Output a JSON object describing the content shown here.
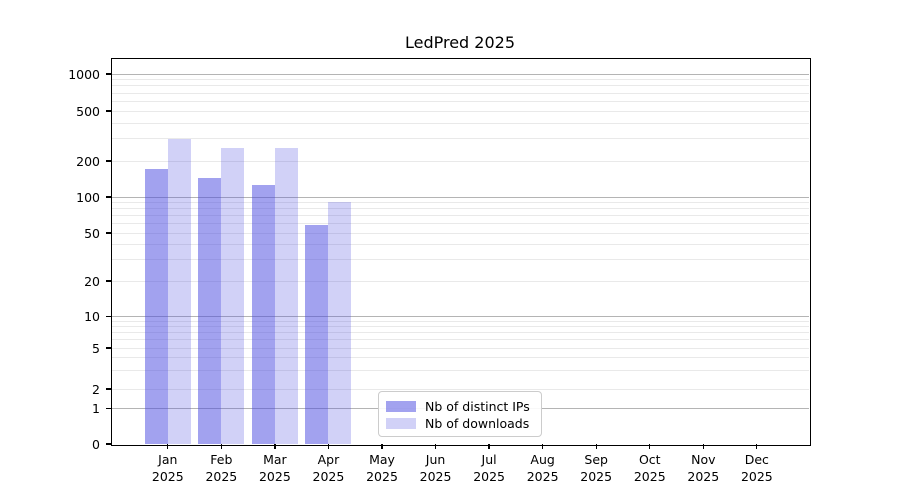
{
  "title": "LedPred 2025",
  "colors": {
    "ips_bar": "rgba(70,70,224,0.5)",
    "downloads_bar": "rgba(70,70,224,0.25)",
    "major_gridline": "#b4b4b4",
    "minor_gridline": "#e9e9e9",
    "axis": "#000000",
    "legend_border": "#cccccc"
  },
  "legend": {
    "items": [
      {
        "label": "Nb of distinct IPs",
        "series": "ips"
      },
      {
        "label": "Nb of downloads",
        "series": "downloads"
      }
    ]
  },
  "chart_data": {
    "type": "bar",
    "title": "LedPred 2025",
    "categories": [
      "Jan 2025",
      "Feb 2025",
      "Mar 2025",
      "Apr 2025",
      "May 2025",
      "Jun 2025",
      "Jul 2025",
      "Aug 2025",
      "Sep 2025",
      "Oct 2025",
      "Nov 2025",
      "Dec 2025"
    ],
    "months": [
      "Jan",
      "Feb",
      "Mar",
      "Apr",
      "May",
      "Jun",
      "Jul",
      "Aug",
      "Sep",
      "Oct",
      "Nov",
      "Dec"
    ],
    "year_label": "2025",
    "series": [
      {
        "name": "Nb of distinct IPs",
        "color_key": "ips_bar",
        "values": [
          172,
          143,
          126,
          58,
          0,
          0,
          0,
          0,
          0,
          0,
          0,
          0
        ]
      },
      {
        "name": "Nb of downloads",
        "color_key": "downloads_bar",
        "values": [
          299,
          252,
          252,
          90,
          0,
          0,
          0,
          0,
          0,
          0,
          0,
          0
        ]
      }
    ],
    "yscale": "symlog",
    "ytick_values": [
      1000,
      500,
      200,
      100,
      50,
      20,
      10,
      5,
      2,
      1,
      0
    ],
    "ylim": [
      0,
      1300
    ],
    "xlabel": "",
    "ylabel": "",
    "grid": "both",
    "legend_location": "lower center"
  }
}
